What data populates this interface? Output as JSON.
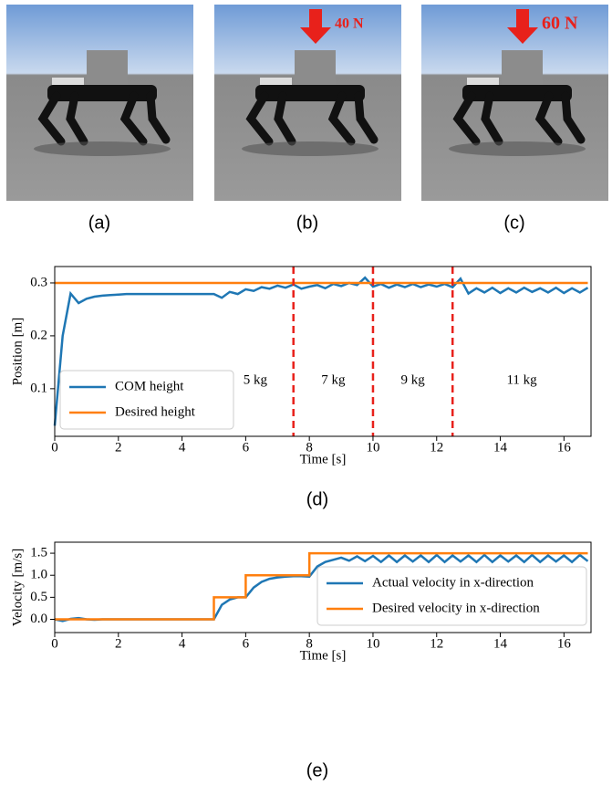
{
  "images": [
    {
      "caption": "(a)"
    },
    {
      "caption": "(b)",
      "force": "40 N"
    },
    {
      "caption": "(c)",
      "force": "60 N"
    }
  ],
  "chart_data": [
    {
      "type": "line",
      "caption": "(d)",
      "x_label": "Time [s]",
      "y_label": "Position [m]",
      "xlim": [
        0,
        16.85
      ],
      "ylim": [
        0.01,
        0.331
      ],
      "xticks": [
        0,
        2,
        4,
        6,
        8,
        10,
        12,
        14,
        16
      ],
      "yticks": [
        0.1,
        0.2,
        0.3
      ],
      "legend": "lower left",
      "vlines": [
        7.5,
        10,
        12.5
      ],
      "vline_color": "#e8211b",
      "annotations": [
        "5 kg",
        "7 kg",
        "9 kg",
        "11 kg"
      ],
      "x": [
        0,
        0.25,
        0.5,
        0.75,
        1,
        1.25,
        1.5,
        1.75,
        2,
        2.25,
        2.5,
        2.75,
        3,
        3.25,
        3.5,
        3.75,
        4,
        4.25,
        4.5,
        4.75,
        5,
        5.25,
        5.5,
        5.75,
        6,
        6.25,
        6.5,
        6.75,
        7,
        7.25,
        7.5,
        7.75,
        8,
        8.25,
        8.5,
        8.75,
        9,
        9.25,
        9.5,
        9.75,
        10,
        10.25,
        10.5,
        10.75,
        11,
        11.25,
        11.5,
        11.75,
        12,
        12.25,
        12.5,
        12.75,
        13,
        13.25,
        13.5,
        13.75,
        14,
        14.25,
        14.5,
        14.75,
        15,
        15.25,
        15.5,
        15.75,
        16,
        16.25,
        16.5,
        16.75
      ],
      "series": [
        {
          "name": "COM height",
          "color": "#1f77b4",
          "values": [
            0.03,
            0.2,
            0.28,
            0.262,
            0.27,
            0.274,
            0.276,
            0.277,
            0.278,
            0.279,
            0.279,
            0.279,
            0.279,
            0.279,
            0.279,
            0.279,
            0.279,
            0.279,
            0.279,
            0.279,
            0.279,
            0.272,
            0.283,
            0.279,
            0.288,
            0.285,
            0.292,
            0.289,
            0.295,
            0.291,
            0.297,
            0.289,
            0.293,
            0.296,
            0.29,
            0.298,
            0.294,
            0.3,
            0.296,
            0.31,
            0.293,
            0.298,
            0.291,
            0.297,
            0.292,
            0.298,
            0.292,
            0.297,
            0.293,
            0.298,
            0.292,
            0.308,
            0.28,
            0.29,
            0.282,
            0.291,
            0.281,
            0.29,
            0.282,
            0.291,
            0.283,
            0.29,
            0.282,
            0.291,
            0.281,
            0.29,
            0.282,
            0.291
          ]
        },
        {
          "name": "Desired height",
          "color": "#ff7f0e",
          "x": [
            0,
            16.75
          ],
          "values": [
            0.3,
            0.3
          ]
        }
      ]
    },
    {
      "type": "line",
      "caption": "(e)",
      "x_label": "Time [s]",
      "y_label": "Velocity [m/s]",
      "xlim": [
        0,
        16.85
      ],
      "ylim": [
        -0.3,
        1.75
      ],
      "xticks": [
        0,
        2,
        4,
        6,
        8,
        10,
        12,
        14,
        16
      ],
      "yticks": [
        {
          "value": 0,
          "label": "0.0"
        },
        {
          "value": 0.5,
          "label": "0.5"
        },
        {
          "value": 1,
          "label": "1.0"
        },
        {
          "value": 1.5,
          "label": "1.5"
        }
      ],
      "legend": "lower right",
      "x": [
        0,
        0.25,
        0.5,
        0.75,
        1,
        1.25,
        1.5,
        1.75,
        2,
        2.25,
        2.5,
        2.75,
        3,
        3.25,
        3.5,
        3.75,
        4,
        4.25,
        4.5,
        4.75,
        5,
        5.25,
        5.5,
        5.75,
        6,
        6.25,
        6.5,
        6.75,
        7,
        7.25,
        7.5,
        7.75,
        8,
        8.25,
        8.5,
        8.75,
        9,
        9.25,
        9.5,
        9.75,
        10,
        10.25,
        10.5,
        10.75,
        11,
        11.25,
        11.5,
        11.75,
        12,
        12.25,
        12.5,
        12.75,
        13,
        13.25,
        13.5,
        13.75,
        14,
        14.25,
        14.5,
        14.75,
        15,
        15.25,
        15.5,
        15.75,
        16,
        16.25,
        16.5,
        16.75
      ],
      "series": [
        {
          "name": "Actual velocity in x-direction",
          "color": "#1f77b4",
          "values": [
            0,
            -0.04,
            0.01,
            0.03,
            0,
            -0.01,
            0,
            0,
            0,
            0,
            0,
            0,
            0,
            0,
            0,
            0,
            0,
            0,
            0,
            0,
            0,
            0.33,
            0.45,
            0.5,
            0.5,
            0.72,
            0.85,
            0.92,
            0.95,
            0.97,
            0.98,
            0.98,
            0.97,
            1.2,
            1.3,
            1.35,
            1.4,
            1.33,
            1.43,
            1.32,
            1.44,
            1.3,
            1.45,
            1.3,
            1.45,
            1.31,
            1.45,
            1.3,
            1.46,
            1.3,
            1.45,
            1.31,
            1.45,
            1.3,
            1.46,
            1.3,
            1.45,
            1.31,
            1.45,
            1.3,
            1.46,
            1.3,
            1.45,
            1.31,
            1.45,
            1.3,
            1.46,
            1.32
          ]
        },
        {
          "name": "Desired velocity in x-direction",
          "color": "#ff7f0e",
          "x": [
            0,
            5,
            5,
            6,
            6,
            8,
            8,
            16.75
          ],
          "values": [
            0,
            0,
            0.5,
            0.5,
            1,
            1,
            1.5,
            1.5
          ]
        }
      ]
    }
  ]
}
